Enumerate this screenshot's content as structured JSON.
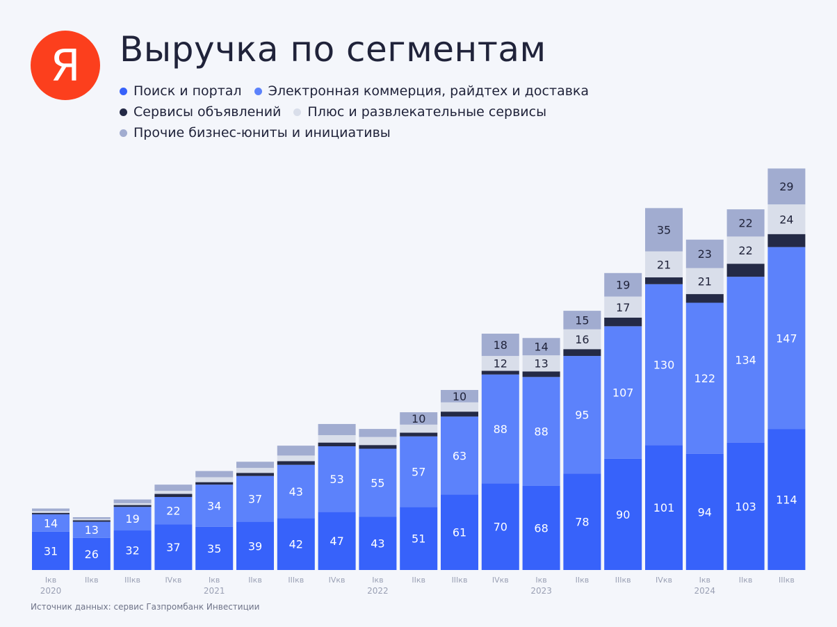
{
  "header": {
    "logo_text": "Я",
    "title": "Выручка по сегментам"
  },
  "footer": {
    "source": "Источник данных: сервис Газпромбанк Инвестиции"
  },
  "colors": {
    "search": "#3762fa",
    "ecommerce": "#5c82fb",
    "classifieds": "#242a46",
    "plus": "#d9deea",
    "other": "#a1acd0",
    "logo": "#fc3f1d"
  },
  "legend_rows": [
    [
      0,
      1
    ],
    [
      2,
      3
    ],
    [
      4
    ]
  ],
  "chart_data": {
    "type": "bar",
    "stacked": true,
    "title": "Выручка по сегментам",
    "categories": [
      "Iкв",
      "IIкв",
      "IIIкв",
      "IVкв",
      "Iкв",
      "IIкв",
      "IIIкв",
      "IVкв",
      "Iкв",
      "IIкв",
      "IIIкв",
      "IVкв",
      "Iкв",
      "IIкв",
      "IIIкв",
      "IVкв",
      "Iкв",
      "IIкв",
      "IIIкв"
    ],
    "year_labels": [
      {
        "index": 0,
        "label": "2020"
      },
      {
        "index": 4,
        "label": "2021"
      },
      {
        "index": 8,
        "label": "2022"
      },
      {
        "index": 12,
        "label": "2023"
      },
      {
        "index": 16,
        "label": "2024"
      }
    ],
    "ylim": [
      0,
      340
    ],
    "grid": false,
    "legend_position": "top-left",
    "series": [
      {
        "name": "Поиск и портал",
        "color": "#3762fa",
        "label_color": "#ffffff",
        "values": [
          31,
          26,
          32,
          37,
          35,
          39,
          42,
          47,
          43,
          51,
          61,
          70,
          68,
          78,
          90,
          101,
          94,
          103,
          114
        ],
        "labeled": [
          true,
          true,
          true,
          true,
          true,
          true,
          true,
          true,
          true,
          true,
          true,
          true,
          true,
          true,
          true,
          true,
          true,
          true,
          true
        ]
      },
      {
        "name": "Электронная коммерция, райдтех и доставка",
        "color": "#5c82fb",
        "label_color": "#ffffff",
        "values": [
          14,
          13,
          19,
          22,
          34,
          37,
          43,
          53,
          55,
          57,
          63,
          88,
          88,
          95,
          107,
          130,
          122,
          134,
          147
        ],
        "labeled": [
          true,
          true,
          true,
          true,
          true,
          true,
          true,
          true,
          true,
          true,
          true,
          true,
          true,
          true,
          true,
          true,
          true,
          true,
          true
        ]
      },
      {
        "name": "Сервисы объявлений",
        "color": "#242a46",
        "label_color": "#ffffff",
        "values": [
          1.2,
          1.2,
          1.5,
          2.5,
          2,
          2.5,
          3,
          3,
          3,
          3,
          4,
          3,
          4.5,
          5.5,
          7,
          5.5,
          7,
          10.5,
          10.5
        ],
        "labeled": [
          false,
          false,
          false,
          false,
          false,
          false,
          false,
          false,
          false,
          false,
          false,
          false,
          false,
          false,
          false,
          false,
          false,
          false,
          false
        ]
      },
      {
        "name": "Плюс и развлекательные сервисы",
        "color": "#d9deea",
        "label_color": "#20233a",
        "values": [
          1.5,
          1,
          1.5,
          2.5,
          4,
          4,
          4.5,
          6,
          6.5,
          6.5,
          7.5,
          12,
          13,
          16,
          17,
          21,
          21,
          22,
          24
        ],
        "labeled": [
          false,
          false,
          false,
          false,
          false,
          false,
          false,
          false,
          false,
          false,
          false,
          true,
          true,
          true,
          true,
          true,
          true,
          true,
          true
        ]
      },
      {
        "name": "Прочие бизнес-юниты и инициативы",
        "color": "#a1acd0",
        "label_color": "#20233a",
        "values": [
          2,
          1.5,
          3,
          5,
          5,
          5,
          8,
          9,
          6.5,
          10,
          10,
          18,
          14,
          15,
          19,
          35,
          23,
          22,
          29
        ],
        "labeled": [
          false,
          false,
          false,
          false,
          false,
          false,
          false,
          false,
          false,
          true,
          true,
          true,
          true,
          true,
          true,
          true,
          true,
          true,
          true
        ]
      }
    ]
  }
}
